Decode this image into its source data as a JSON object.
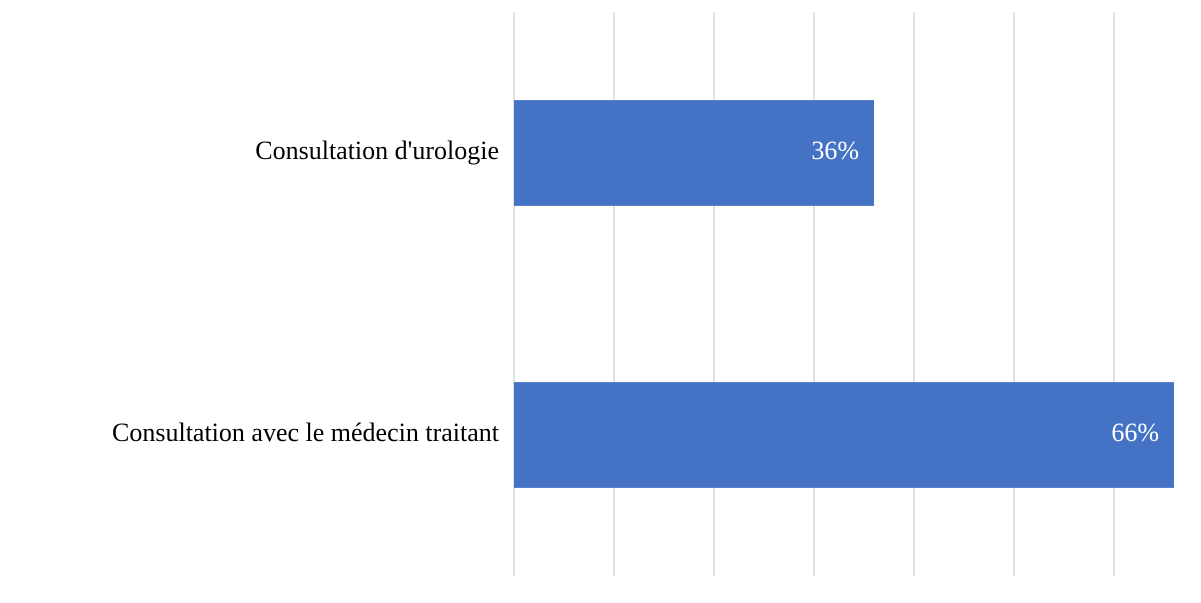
{
  "chart_data": {
    "type": "barh",
    "categories": [
      "Consultation d'urologie",
      "Consultation avec le médecin traitant"
    ],
    "values": [
      36,
      66
    ],
    "value_labels": [
      "36%",
      "66%"
    ],
    "color": "#4472c4",
    "xlim": [
      0,
      70
    ],
    "xticks": [
      0,
      10,
      20,
      30,
      40,
      50,
      60
    ],
    "grid": true
  }
}
